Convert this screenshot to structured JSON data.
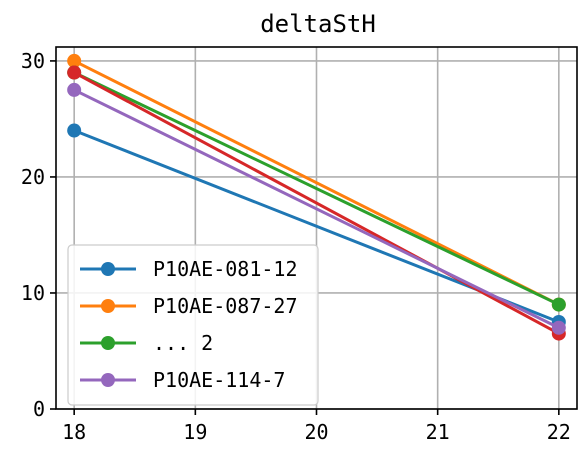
{
  "chart_data": {
    "type": "line",
    "title": "deltaStH",
    "xlabel": "",
    "ylabel": "",
    "x": [
      18,
      22
    ],
    "xlim": [
      17.85,
      22.15
    ],
    "ylim": [
      0,
      31.2
    ],
    "xticks": [
      18,
      19,
      20,
      21,
      22
    ],
    "yticks": [
      0,
      10,
      20,
      30
    ],
    "grid": true,
    "legend_position": "lower-left",
    "series": [
      {
        "name": "P10AE-081-12",
        "values": [
          24,
          7.5
        ],
        "color": "#1f77b4",
        "in_legend": true
      },
      {
        "name": "P10AE-087-27",
        "values": [
          30,
          9
        ],
        "color": "#ff7f0e",
        "in_legend": true
      },
      {
        "name": "... 2",
        "values": [
          29,
          9
        ],
        "color": "#2ca02c",
        "in_legend": true
      },
      {
        "name": "",
        "values": [
          29,
          6.5
        ],
        "color": "#d62728",
        "in_legend": false
      },
      {
        "name": "P10AE-114-7",
        "values": [
          27.5,
          7
        ],
        "color": "#9467bd",
        "in_legend": true
      }
    ]
  }
}
